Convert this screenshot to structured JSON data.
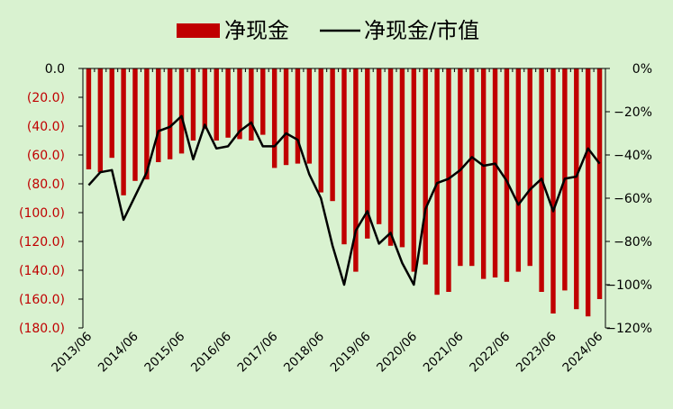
{
  "chart_data": {
    "type": "bar",
    "x": [
      "2013/06",
      "2013/09",
      "2013/12",
      "2014/03",
      "2014/06",
      "2014/09",
      "2014/12",
      "2015/03",
      "2015/06",
      "2015/09",
      "2015/12",
      "2016/03",
      "2016/06",
      "2016/09",
      "2016/12",
      "2017/03",
      "2017/06",
      "2017/09",
      "2017/12",
      "2018/03",
      "2018/06",
      "2018/09",
      "2018/12",
      "2019/03",
      "2019/06",
      "2019/09",
      "2019/12",
      "2020/03",
      "2020/06",
      "2020/09",
      "2020/12",
      "2021/03",
      "2021/06",
      "2021/09",
      "2021/12",
      "2022/03",
      "2022/06",
      "2022/09",
      "2022/12",
      "2023/03",
      "2023/06",
      "2023/09",
      "2023/12",
      "2024/03",
      "2024/06"
    ],
    "x_tick_labels": [
      "2013/06",
      "2014/06",
      "2015/06",
      "2016/06",
      "2017/06",
      "2018/06",
      "2019/06",
      "2020/06",
      "2021/06",
      "2022/06",
      "2023/06",
      "2024/06"
    ],
    "series": [
      {
        "name": "净现金",
        "type": "bar",
        "axis": "left",
        "color": "#c00000",
        "values": [
          -70,
          -72,
          -62,
          -88,
          -78,
          -77,
          -65,
          -63,
          -59,
          -50,
          -42,
          -50,
          -48,
          -49,
          -50,
          -46,
          -69,
          -67,
          -66,
          -66,
          -86,
          -92,
          -122,
          -141,
          -118,
          -108,
          -123,
          -124,
          -141,
          -136,
          -157,
          -155,
          -137,
          -137,
          -146,
          -145,
          -148,
          -141,
          -137,
          -155,
          -170,
          -154,
          -167,
          -172,
          -160
        ]
      },
      {
        "name": "净现金/市值",
        "type": "line",
        "axis": "right",
        "color": "#000000",
        "values": [
          -54,
          -48,
          -47,
          -70,
          -59,
          -48,
          -29,
          -27,
          -22,
          -42,
          -26,
          -37,
          -36,
          -29,
          -25,
          -36,
          -36,
          -30,
          -33,
          -49,
          -60,
          -82,
          -100,
          -75,
          -66,
          -81,
          -76,
          -90,
          -100,
          -65,
          -53,
          -51,
          -47,
          -41,
          -45,
          -44,
          -52,
          -63,
          -56,
          -51,
          -66,
          -51,
          -50,
          -37,
          -44
        ]
      }
    ],
    "y_left": {
      "min": -180,
      "max": 0,
      "step": 20,
      "tick_labels": [
        "0.0",
        "(20.0)",
        "(40.0)",
        "(60.0)",
        "(80.0)",
        "(100.0)",
        "(120.0)",
        "(140.0)",
        "(160.0)",
        "(180.0)"
      ],
      "zero_color": "#000000",
      "negative_color": "#c00000"
    },
    "y_right": {
      "min": -120,
      "max": 0,
      "step": 20,
      "tick_labels": [
        "0%",
        "−20%",
        "−40%",
        "−60%",
        "−80%",
        "−100%",
        "−120%"
      ]
    },
    "legend": {
      "position": "top",
      "labels": [
        "净现金",
        "净现金/市值"
      ]
    },
    "grid": false
  }
}
